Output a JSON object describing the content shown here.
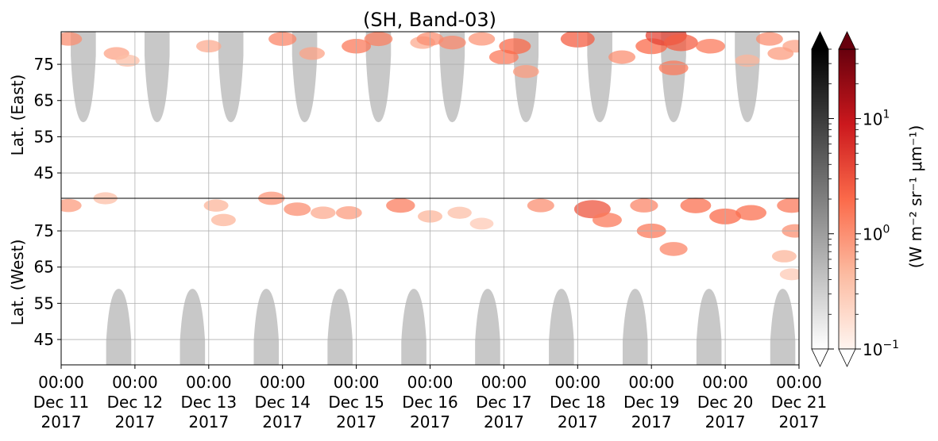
{
  "chart_data": {
    "type": "heatmap",
    "title": "(SH, Band-03)",
    "upper_ylabel": "Lat. (East)",
    "lower_ylabel": "Lat. (West)",
    "upper_yticks": [
      "45",
      "55",
      "65",
      "75"
    ],
    "lower_yticks": [
      "75",
      "65",
      "55",
      "45"
    ],
    "upper_ylim": [
      38,
      84
    ],
    "lower_ylim": [
      84,
      38
    ],
    "xlim": [
      "2017-12-11 00:00",
      "2017-12-21 00:00"
    ],
    "xticks": [
      {
        "time": "00:00",
        "date": "Dec 11",
        "year": "2017"
      },
      {
        "time": "00:00",
        "date": "Dec 12",
        "year": "2017"
      },
      {
        "time": "00:00",
        "date": "Dec 13",
        "year": "2017"
      },
      {
        "time": "00:00",
        "date": "Dec 14",
        "year": "2017"
      },
      {
        "time": "00:00",
        "date": "Dec 15",
        "year": "2017"
      },
      {
        "time": "00:00",
        "date": "Dec 16",
        "year": "2017"
      },
      {
        "time": "00:00",
        "date": "Dec 17",
        "year": "2017"
      },
      {
        "time": "00:00",
        "date": "Dec 18",
        "year": "2017"
      },
      {
        "time": "00:00",
        "date": "Dec 19",
        "year": "2017"
      },
      {
        "time": "00:00",
        "date": "Dec 20",
        "year": "2017"
      },
      {
        "time": "00:00",
        "date": "Dec 21",
        "year": "2017"
      }
    ],
    "grid": true,
    "colorbar": {
      "label": "(W m⁻² sr⁻¹ μm⁻¹)",
      "scale": "log",
      "range": [
        0.1,
        40
      ],
      "tick_base": "10",
      "ticks": [
        {
          "value": 0.1,
          "exp": "−1"
        },
        {
          "value": 1,
          "exp": "0"
        },
        {
          "value": 10,
          "exp": "1"
        }
      ],
      "gray_cmap": [
        "#ffffff",
        "#000000"
      ],
      "red_cmap": [
        "#fff5f0",
        "#fcbba1",
        "#fb6a4a",
        "#cb181d",
        "#67000d"
      ]
    },
    "sunlit_regions": {
      "color": "#c8c8c8",
      "upper_edge_lat": 59,
      "lower_edge_lat": 59,
      "upper_centers_day": [
        0.3,
        1.3,
        2.3,
        3.3,
        4.3,
        5.3,
        6.3,
        7.3,
        8.3,
        9.3
      ],
      "lower_centers_day": [
        0.78,
        1.78,
        2.78,
        3.78,
        4.78,
        5.78,
        6.78,
        7.78,
        8.78,
        9.78
      ],
      "half_width_days": 0.17
    },
    "aurora_blobs": [
      {
        "day": 0.1,
        "lat": 82,
        "side": "east",
        "value": 1.0
      },
      {
        "day": 0.1,
        "lat": 82,
        "side": "west",
        "value": 0.8
      },
      {
        "day": 0.75,
        "lat": 78,
        "side": "east",
        "value": 0.7
      },
      {
        "day": 0.9,
        "lat": 76,
        "side": "east",
        "value": 0.4
      },
      {
        "day": 0.6,
        "lat": 84,
        "side": "west",
        "value": 0.4
      },
      {
        "day": 2.0,
        "lat": 80,
        "side": "east",
        "value": 0.6
      },
      {
        "day": 2.1,
        "lat": 82,
        "side": "west",
        "value": 0.5
      },
      {
        "day": 2.85,
        "lat": 84,
        "side": "west",
        "value": 0.9
      },
      {
        "day": 2.2,
        "lat": 78,
        "side": "west",
        "value": 0.5
      },
      {
        "day": 3.0,
        "lat": 82,
        "side": "east",
        "value": 1.2
      },
      {
        "day": 3.2,
        "lat": 81,
        "side": "west",
        "value": 1.0
      },
      {
        "day": 3.4,
        "lat": 78,
        "side": "east",
        "value": 0.7
      },
      {
        "day": 3.55,
        "lat": 80,
        "side": "west",
        "value": 0.6
      },
      {
        "day": 3.9,
        "lat": 80,
        "side": "west",
        "value": 0.8
      },
      {
        "day": 4.0,
        "lat": 80,
        "side": "east",
        "value": 1.5
      },
      {
        "day": 4.3,
        "lat": 82,
        "side": "east",
        "value": 1.3
      },
      {
        "day": 4.6,
        "lat": 82,
        "side": "west",
        "value": 1.4
      },
      {
        "day": 4.9,
        "lat": 81,
        "side": "east",
        "value": 0.6
      },
      {
        "day": 5.0,
        "lat": 79,
        "side": "west",
        "value": 0.5
      },
      {
        "day": 5.4,
        "lat": 80,
        "side": "west",
        "value": 0.4
      },
      {
        "day": 5.7,
        "lat": 77,
        "side": "west",
        "value": 0.3
      },
      {
        "day": 5.0,
        "lat": 82,
        "side": "east",
        "value": 1.0
      },
      {
        "day": 5.3,
        "lat": 81,
        "side": "east",
        "value": 1.1
      },
      {
        "day": 5.7,
        "lat": 82,
        "side": "east",
        "value": 0.9
      },
      {
        "day": 6.0,
        "lat": 77,
        "side": "east",
        "value": 1.5
      },
      {
        "day": 6.15,
        "lat": 80,
        "side": "east",
        "value": 2.0
      },
      {
        "day": 6.3,
        "lat": 73,
        "side": "east",
        "value": 0.8
      },
      {
        "day": 6.5,
        "lat": 82,
        "side": "west",
        "value": 1.0
      },
      {
        "day": 7.0,
        "lat": 82,
        "side": "east",
        "value": 2.5
      },
      {
        "day": 7.2,
        "lat": 81,
        "side": "west",
        "value": 3.0
      },
      {
        "day": 7.4,
        "lat": 78,
        "side": "west",
        "value": 1.5
      },
      {
        "day": 7.6,
        "lat": 77,
        "side": "east",
        "value": 1.0
      },
      {
        "day": 7.9,
        "lat": 82,
        "side": "west",
        "value": 1.2
      },
      {
        "day": 8.0,
        "lat": 80,
        "side": "east",
        "value": 2.0
      },
      {
        "day": 8.2,
        "lat": 83,
        "side": "east",
        "value": 4.0
      },
      {
        "day": 8.4,
        "lat": 81,
        "side": "east",
        "value": 2.5
      },
      {
        "day": 8.3,
        "lat": 74,
        "side": "east",
        "value": 1.5
      },
      {
        "day": 8.0,
        "lat": 75,
        "side": "west",
        "value": 1.5
      },
      {
        "day": 8.3,
        "lat": 70,
        "side": "west",
        "value": 1.2
      },
      {
        "day": 8.6,
        "lat": 82,
        "side": "west",
        "value": 1.8
      },
      {
        "day": 8.8,
        "lat": 80,
        "side": "east",
        "value": 1.5
      },
      {
        "day": 9.0,
        "lat": 79,
        "side": "west",
        "value": 2.0
      },
      {
        "day": 9.35,
        "lat": 80,
        "side": "west",
        "value": 1.8
      },
      {
        "day": 9.6,
        "lat": 82,
        "side": "east",
        "value": 1.0
      },
      {
        "day": 9.75,
        "lat": 78,
        "side": "east",
        "value": 0.8
      },
      {
        "day": 9.3,
        "lat": 76,
        "side": "east",
        "value": 0.5
      },
      {
        "day": 9.95,
        "lat": 80,
        "side": "east",
        "value": 0.7
      },
      {
        "day": 9.9,
        "lat": 82,
        "side": "west",
        "value": 1.5
      },
      {
        "day": 9.95,
        "lat": 75,
        "side": "west",
        "value": 1.0
      },
      {
        "day": 9.8,
        "lat": 68,
        "side": "west",
        "value": 0.5
      },
      {
        "day": 9.9,
        "lat": 63,
        "side": "west",
        "value": 0.3
      }
    ]
  }
}
